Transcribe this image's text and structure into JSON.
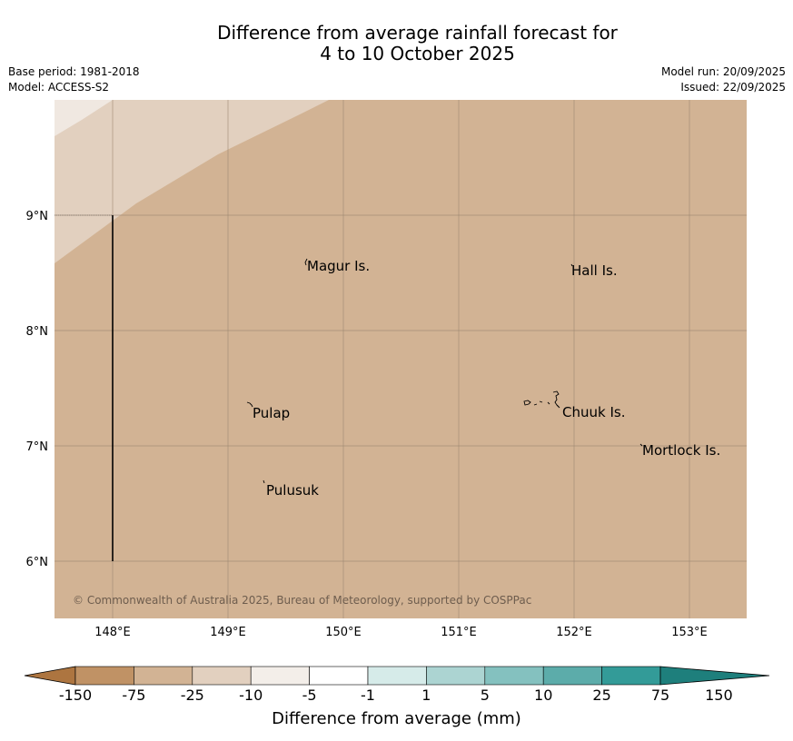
{
  "header": {
    "title_line1": "Difference from average rainfall forecast for",
    "title_line2": "4 to 10 October 2025",
    "base_period": "Base period: 1981-2018",
    "model": "Model: ACCESS-S2",
    "model_run": "Model run: 20/09/2025",
    "issued": "Issued: 22/09/2025"
  },
  "map": {
    "lat_labels": [
      "9°N",
      "8°N",
      "7°N",
      "6°N"
    ],
    "lon_labels": [
      "148°E",
      "149°E",
      "150°E",
      "151°E",
      "152°E",
      "153°E"
    ],
    "places": [
      "Magur Is.",
      "Hall Is.",
      "Pulap",
      "Chuuk Is.",
      "Mortlock Is.",
      "Pulusuk"
    ],
    "copyright": "© Commonwealth of Australia 2025, Bureau of Meteorology, supported by COSPPac",
    "colors": {
      "base_fill": "#d2b394",
      "band_light": "#e2d0bf",
      "band_lighter": "#f0e8e1",
      "grid": "#9a8570"
    }
  },
  "colorbar": {
    "title": "Difference from average (mm)",
    "ticks": [
      "-150",
      "-75",
      "-25",
      "-10",
      "-5",
      "-1",
      "1",
      "5",
      "10",
      "25",
      "75",
      "150"
    ],
    "colors": [
      "#ad7540",
      "#c09265",
      "#d2b394",
      "#e2d0bf",
      "#f3eee9",
      "#ffffff",
      "#d6ebe9",
      "#acd4d2",
      "#84c1bf",
      "#5cacaa",
      "#339b98",
      "#1e7f7c"
    ]
  }
}
